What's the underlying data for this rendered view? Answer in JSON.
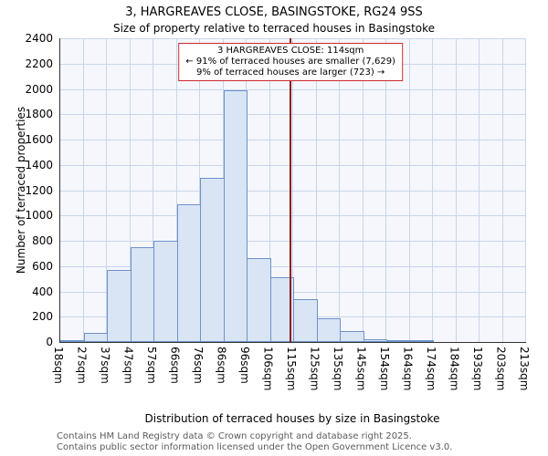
{
  "title": "3, HARGREAVES CLOSE, BASINGSTOKE, RG24 9SS",
  "subtitle": "Size of property relative to terraced houses in Basingstoke",
  "chart_data": {
    "type": "bar",
    "title": "3, HARGREAVES CLOSE, BASINGSTOKE, RG24 9SS",
    "subtitle": "Size of property relative to terraced houses in Basingstoke",
    "bin_edges": [
      18,
      27,
      37,
      47,
      57,
      66,
      76,
      86,
      96,
      106,
      115,
      125,
      135,
      145,
      154,
      164,
      174,
      184,
      193,
      203,
      213
    ],
    "tick_labels": [
      "18sqm",
      "27sqm",
      "37sqm",
      "47sqm",
      "57sqm",
      "66sqm",
      "76sqm",
      "86sqm",
      "96sqm",
      "106sqm",
      "115sqm",
      "125sqm",
      "135sqm",
      "145sqm",
      "154sqm",
      "164sqm",
      "174sqm",
      "184sqm",
      "193sqm",
      "203sqm",
      "213sqm"
    ],
    "values": [
      10,
      70,
      570,
      750,
      800,
      1090,
      1300,
      1990,
      660,
      510,
      340,
      190,
      90,
      25,
      12,
      5,
      0,
      0,
      0,
      0
    ],
    "xlabel": "Distribution of terraced houses by size in Basingstoke",
    "ylabel": "Number of terraced properties",
    "ylim": [
      0,
      2400
    ],
    "ytick_step": 200,
    "grid": true,
    "marker_value": 114,
    "annotation": {
      "line1": "3 HARGREAVES CLOSE: 114sqm",
      "line2": "← 91% of terraced houses are smaller (7,629)",
      "line3": "9% of terraced houses are larger (723) →"
    },
    "colors": {
      "bar_fill": "#d9e4f5",
      "bar_border": "#6e93c8",
      "marker_line": "#8b1e1e",
      "annotation_border": "#cc2a2a",
      "grid": "#c9d5ea",
      "plot_bg": "#f5f7fc"
    }
  },
  "footer": {
    "line1": "Contains HM Land Registry data © Crown copyright and database right 2025.",
    "line2": "Contains public sector information licensed under the Open Government Licence v3.0."
  }
}
